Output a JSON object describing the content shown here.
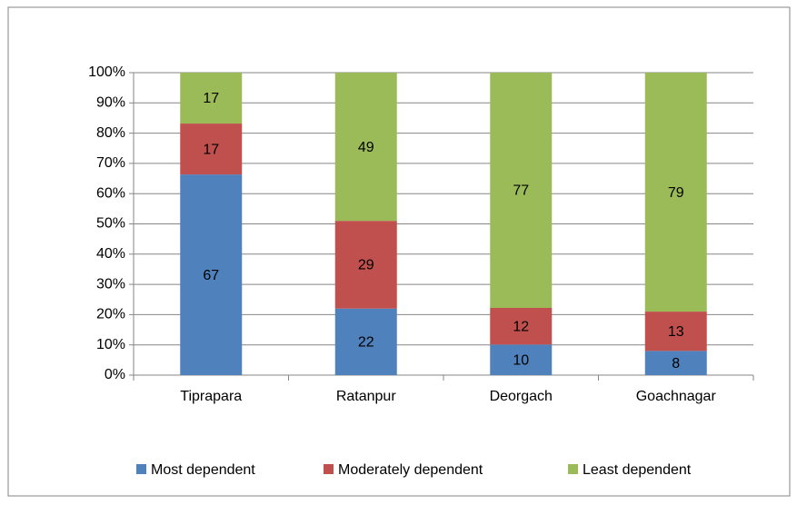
{
  "chart_data": {
    "type": "bar",
    "stack": "percent",
    "categories": [
      "Tiprapara",
      "Ratanpur",
      "Deorgach",
      "Goachnagar"
    ],
    "series": [
      {
        "name": "Most dependent",
        "color": "#4f81bd",
        "values": [
          67,
          22,
          10,
          8
        ]
      },
      {
        "name": "Moderately dependent",
        "color": "#c0504d",
        "values": [
          17,
          29,
          12,
          13
        ]
      },
      {
        "name": "Least dependent",
        "color": "#9bbb59",
        "values": [
          17,
          49,
          77,
          79
        ]
      }
    ],
    "ylim": [
      0,
      100
    ],
    "yticks": [
      {
        "value": 0,
        "label": "0%"
      },
      {
        "value": 10,
        "label": "10%"
      },
      {
        "value": 20,
        "label": "20%"
      },
      {
        "value": 30,
        "label": "30%"
      },
      {
        "value": 40,
        "label": "40%"
      },
      {
        "value": 50,
        "label": "50%"
      },
      {
        "value": 60,
        "label": "60%"
      },
      {
        "value": 70,
        "label": "70%"
      },
      {
        "value": 80,
        "label": "80%"
      },
      {
        "value": 90,
        "label": "90%"
      },
      {
        "value": 100,
        "label": "100%"
      }
    ],
    "grid": true,
    "legend": "bottom"
  }
}
